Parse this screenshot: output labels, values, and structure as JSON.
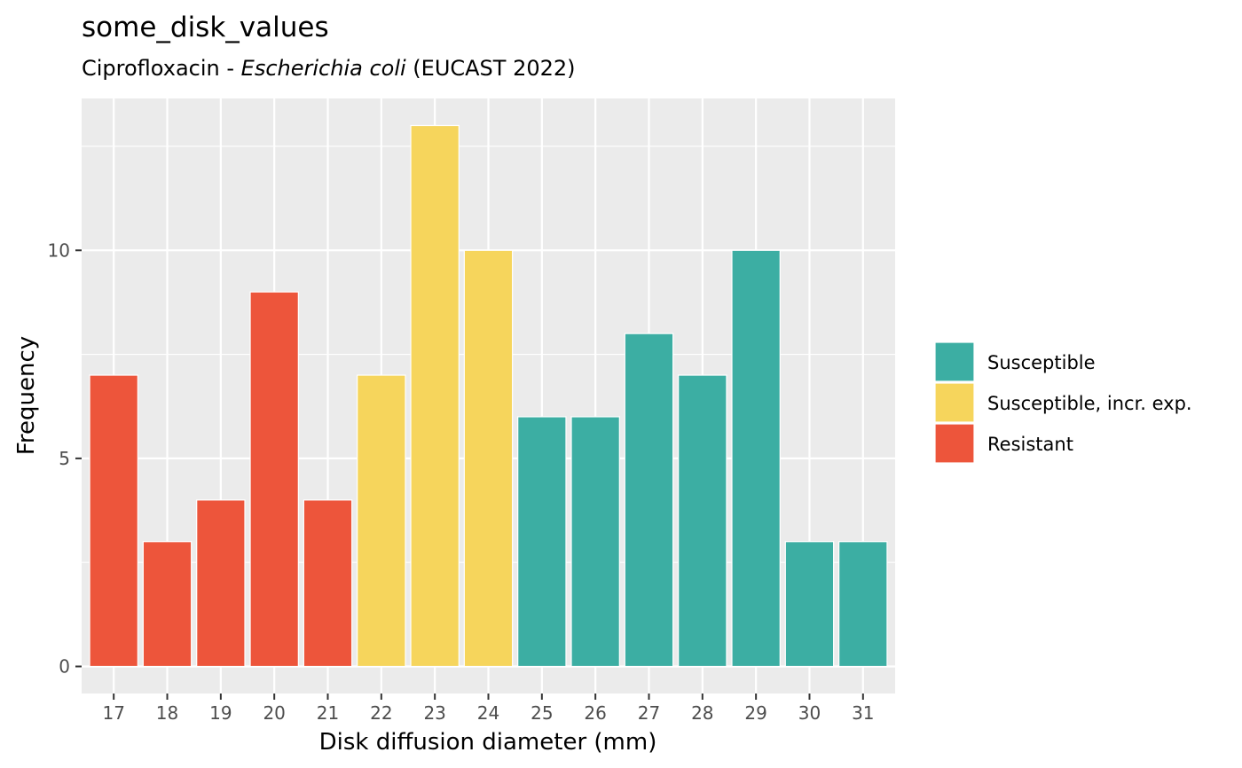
{
  "chart_data": {
    "type": "bar",
    "title": "some_disk_values",
    "subtitle": {
      "prefix": "Ciprofloxacin - ",
      "organism": "Escherichia coli",
      "suffix": " (EUCAST 2022)"
    },
    "xlabel": "Disk diffusion diameter (mm)",
    "ylabel": "Frequency",
    "categories": [
      "17",
      "18",
      "19",
      "20",
      "21",
      "22",
      "23",
      "24",
      "25",
      "26",
      "27",
      "28",
      "29",
      "30",
      "31"
    ],
    "values": [
      7,
      3,
      4,
      9,
      4,
      7,
      13,
      10,
      6,
      6,
      8,
      7,
      10,
      3,
      3
    ],
    "interpretation": [
      "Resistant",
      "Resistant",
      "Resistant",
      "Resistant",
      "Resistant",
      "Susceptible, incr. exp.",
      "Susceptible, incr. exp.",
      "Susceptible, incr. exp.",
      "Susceptible",
      "Susceptible",
      "Susceptible",
      "Susceptible",
      "Susceptible",
      "Susceptible",
      "Susceptible"
    ],
    "ylim": [
      -0.65,
      13.65
    ],
    "yticks": [
      0,
      5,
      10
    ],
    "grid": true,
    "legend_position": "right",
    "legend": [
      {
        "label": "Susceptible",
        "color": "#3CAEA3"
      },
      {
        "label": "Susceptible, incr. exp.",
        "color": "#F6D55C"
      },
      {
        "label": "Resistant",
        "color": "#ED553B"
      }
    ],
    "colors": {
      "panel_background": "#EBEBEB",
      "grid": "#FFFFFF",
      "tick": "#333333"
    }
  }
}
